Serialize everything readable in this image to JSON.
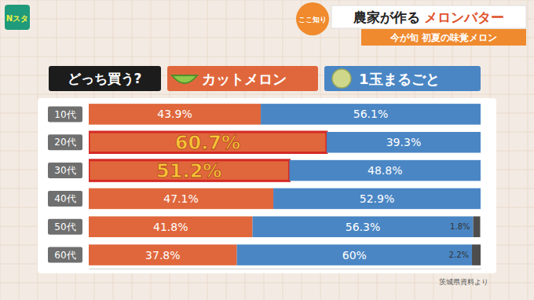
{
  "chart_data": {
    "type": "bar",
    "orientation": "horizontal",
    "stacked": true,
    "data_labels": true,
    "tick_labels": "y",
    "legend": "top",
    "title": "農家が作る メロンバター",
    "subtitle": "今が旬 初夏の味覚メロン",
    "annotations": [
      "Nスタ",
      "ここ知り",
      "どっち買う?",
      "茨城県資料より"
    ],
    "categories": [
      "10代",
      "20代",
      "30代",
      "40代",
      "50代",
      "60代"
    ],
    "xlim": [
      0,
      100
    ],
    "xticks": [],
    "series": [
      {
        "name": "カットメロン",
        "color": "#e0673c",
        "values": [
          43.9,
          60.7,
          51.2,
          47.1,
          41.8,
          37.8
        ],
        "value_labels": [
          "43.9%",
          "60.7%",
          "51.2%",
          "47.1%",
          "41.8%",
          "37.8%"
        ]
      },
      {
        "name": "1玉まるごと",
        "color": "#4a86c4",
        "values": [
          56.1,
          39.3,
          48.8,
          52.9,
          56.3,
          60
        ],
        "value_labels": [
          "56.1%",
          "39.3%",
          "48.8%",
          "52.9%",
          "56.3%",
          "60%"
        ]
      },
      {
        "color": "#4d4d4d",
        "values": [
          null,
          null,
          null,
          null,
          1.8,
          2.2
        ],
        "value_labels": [
          null,
          null,
          null,
          null,
          "1.8%",
          "2.2%"
        ]
      }
    ]
  }
}
